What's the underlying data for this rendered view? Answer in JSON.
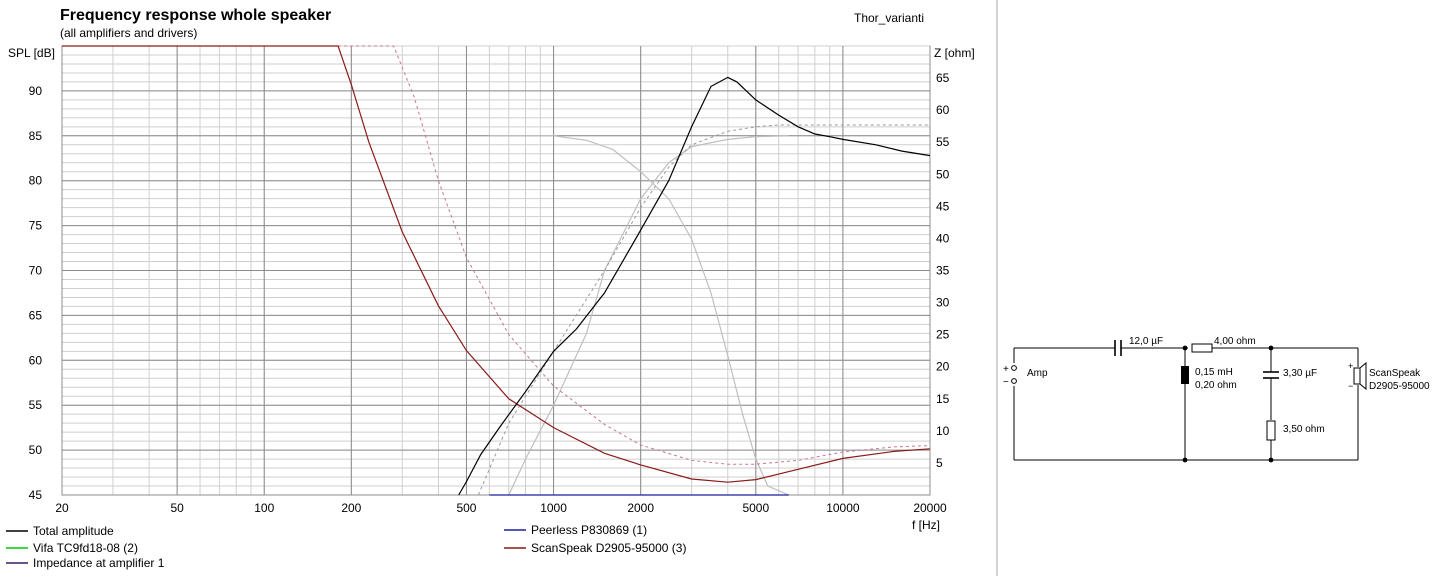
{
  "header": {
    "title": "Frequency response whole speaker",
    "subtitle": "(all amplifiers and drivers)",
    "project": "Thor_varianti"
  },
  "colors": {
    "total": "#000000",
    "peerless": "#1f1f9e",
    "vifa": "#00c800",
    "scanspeak": "#8b1a1a",
    "impedance": "#3a1a5e",
    "grid_major": "#8c8c8c",
    "grid_minor": "#cfcfcf",
    "driver_curve": "#bfbfbf",
    "dashed": "#c7788a"
  },
  "chart_data": {
    "type": "line",
    "title": "Frequency response whole speaker",
    "subtitle": "(all amplifiers and drivers)",
    "xlabel": "f [Hz]",
    "ylabel": "SPL [dB]",
    "y2label": "Z [ohm]",
    "xscale": "log",
    "xlim": [
      20,
      20000
    ],
    "ylim": [
      45,
      95
    ],
    "y2lim": [
      0,
      70
    ],
    "xticks": [
      20,
      50,
      100,
      200,
      500,
      1000,
      2000,
      5000,
      10000,
      20000
    ],
    "yticks": [
      45,
      50,
      55,
      60,
      65,
      70,
      75,
      80,
      85,
      90
    ],
    "y2ticks": [
      5,
      10,
      15,
      20,
      25,
      30,
      35,
      40,
      45,
      50,
      55,
      60,
      65
    ],
    "grid": true,
    "legend_position": "bottom",
    "legend": [
      "Total amplitude",
      "Peerless P830869 (1)",
      "Vifa TC9fd18-08 (2)",
      "ScanSpeak D2905-95000 (3)",
      "Impedance at amplifier 1"
    ],
    "series": [
      {
        "name": "Total amplitude",
        "axis": "left",
        "x": [
          470,
          500,
          560,
          650,
          800,
          1000,
          1200,
          1500,
          2000,
          2500,
          3000,
          3500,
          4000,
          4300,
          5000,
          6000,
          7000,
          8000,
          9000,
          10000,
          13000,
          16000,
          20000
        ],
        "y": [
          45,
          46.5,
          49.5,
          52.5,
          56.5,
          61,
          63.5,
          67.5,
          74.5,
          80,
          86,
          90.5,
          91.5,
          91,
          89,
          87.3,
          86,
          85.2,
          84.9,
          84.6,
          84,
          83.3,
          82.8
        ]
      },
      {
        "name": "ScanSpeak D2905-95000 (3)",
        "axis": "right",
        "x": [
          20,
          100,
          180,
          200,
          230,
          300,
          400,
          500,
          700,
          1000,
          1500,
          2000,
          3000,
          4000,
          5000,
          7000,
          10000,
          15000,
          20000
        ],
        "y": [
          70,
          70,
          70,
          64,
          55,
          41,
          29.5,
          22.5,
          15,
          10.5,
          6.5,
          4.7,
          2.5,
          2,
          2.4,
          4,
          5.7,
          6.8,
          7.2
        ]
      },
      {
        "name": "Peerless P830869 (1)",
        "axis": "left",
        "x": [
          600,
          6500
        ],
        "y": [
          45,
          45
        ]
      },
      {
        "name": "Vifa driver response (light)",
        "axis": "left",
        "x": [
          600,
          1000,
          1300,
          1600,
          2000,
          2500,
          3000,
          3500,
          4000,
          4500,
          5000,
          5500,
          6500
        ],
        "y": [
          85,
          85,
          84.5,
          83.5,
          81,
          78,
          73.5,
          67.5,
          60.5,
          54,
          49,
          46,
          45
        ]
      },
      {
        "name": "ScanSpeak driver response (light)",
        "axis": "left",
        "x": [
          700,
          800,
          1000,
          1300,
          1500,
          2000,
          2500,
          3000,
          4000,
          5000,
          6500
        ],
        "y": [
          45,
          49,
          55,
          63,
          70,
          78,
          82,
          83.8,
          84.6,
          84.9,
          85
        ]
      },
      {
        "name": "Impedance variant (dashed)",
        "axis": "right",
        "x": [
          20,
          280,
          330,
          400,
          500,
          700,
          1000,
          1500,
          2000,
          3000,
          4000,
          5000,
          7000,
          10000,
          15000,
          20000
        ],
        "y": [
          70,
          70,
          62,
          49,
          37,
          25,
          17,
          11,
          7.8,
          5.4,
          4.8,
          4.8,
          5.4,
          6.7,
          7.5,
          7.7
        ]
      },
      {
        "name": "Total amplitude variant (dashed)",
        "axis": "left",
        "x": [
          550,
          700,
          1000,
          1500,
          2000,
          2500,
          3000,
          4000,
          5000,
          6000,
          8000,
          10000,
          15000,
          20000
        ],
        "y": [
          45,
          53,
          61,
          70,
          77,
          81.5,
          84,
          85.5,
          86,
          86.2,
          86.2,
          86.2,
          86.2,
          86.2
        ]
      }
    ]
  },
  "schematic": {
    "amp_label": "Amp",
    "plus": "+",
    "minus": "−",
    "cap1": "12,0 µF",
    "res1": "4,00 ohm",
    "inductor_value": "0,15 mH",
    "inductor_dcr": "0,20 ohm",
    "cap2": "3,30 µF",
    "res2": "3,50 ohm",
    "driver_name": "ScanSpeak",
    "driver_model": "D2905-95000"
  }
}
